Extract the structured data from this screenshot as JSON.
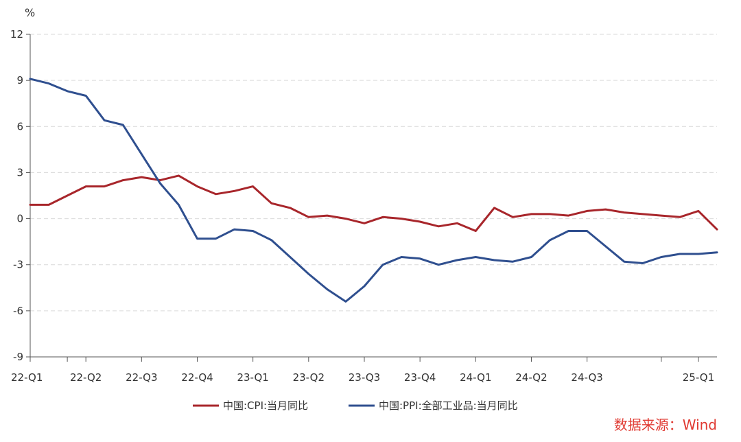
{
  "chart_data": {
    "type": "line",
    "title": "",
    "ylabel": "%",
    "xlabel": "",
    "ylim": [
      -9,
      12
    ],
    "y_ticks": [
      "12",
      "9",
      "6",
      "3",
      "0",
      "-3",
      "-6",
      "-9"
    ],
    "grid": true,
    "legend_position": "bottom",
    "x_tick_labels": [
      {
        "index": 0,
        "label": "22-Q1"
      },
      {
        "index": 3,
        "label": "22-Q2"
      },
      {
        "index": 6,
        "label": "22-Q3"
      },
      {
        "index": 9,
        "label": "22-Q4"
      },
      {
        "index": 12,
        "label": "23-Q1"
      },
      {
        "index": 15,
        "label": "23-Q2"
      },
      {
        "index": 18,
        "label": "23-Q3"
      },
      {
        "index": 21,
        "label": "23-Q4"
      },
      {
        "index": 24,
        "label": "24-Q1"
      },
      {
        "index": 27,
        "label": "24-Q2"
      },
      {
        "index": 30,
        "label": "24-Q3"
      },
      {
        "index": 36,
        "label": "25-Q1"
      }
    ],
    "x_minor_ticks": [
      2,
      34
    ],
    "series": [
      {
        "name": "中国:CPI:当月同比",
        "color": "#a8262b",
        "values": [
          0.9,
          0.9,
          1.5,
          2.1,
          2.1,
          2.5,
          2.7,
          2.5,
          2.8,
          2.1,
          1.6,
          1.8,
          2.1,
          1.0,
          0.7,
          0.1,
          0.2,
          0.0,
          -0.3,
          0.1,
          0.0,
          -0.2,
          -0.5,
          -0.3,
          -0.8,
          0.7,
          0.1,
          0.3,
          0.3,
          0.2,
          0.5,
          0.6,
          0.4,
          0.3,
          0.2,
          0.1,
          0.5,
          -0.7
        ]
      },
      {
        "name": "中国:PPI:全部工业品:当月同比",
        "color": "#2f4f8f",
        "values": [
          9.1,
          8.8,
          8.3,
          8.0,
          6.4,
          6.1,
          4.2,
          2.3,
          0.9,
          -1.3,
          -1.3,
          -0.7,
          -0.8,
          -1.4,
          -2.5,
          -3.6,
          -4.6,
          -5.4,
          -4.4,
          -3.0,
          -2.5,
          -2.6,
          -3.0,
          -2.7,
          -2.5,
          -2.7,
          -2.8,
          -2.5,
          -1.4,
          -0.8,
          -0.8,
          -1.8,
          -2.8,
          -2.9,
          -2.5,
          -2.3,
          -2.3,
          -2.2
        ]
      }
    ]
  },
  "source": "数据来源：Wind"
}
